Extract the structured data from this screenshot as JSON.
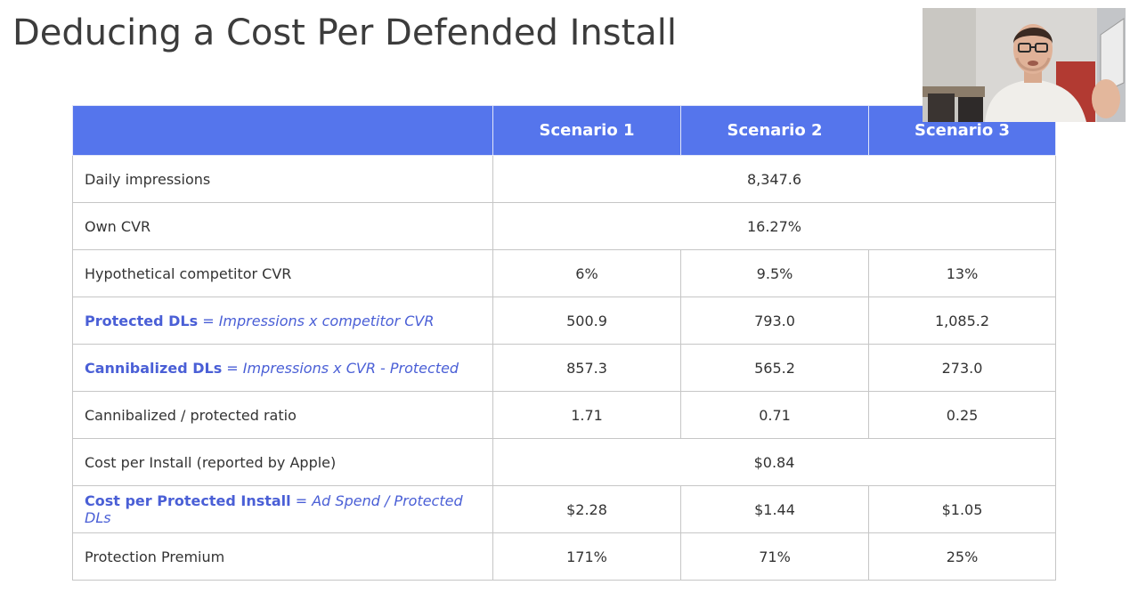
{
  "slide": {
    "title": "Deducing a Cost Per Defended Install"
  },
  "table": {
    "header": {
      "row_label": "",
      "scenarios": [
        "Scenario 1",
        "Scenario 2",
        "Scenario 3"
      ]
    },
    "rows": [
      {
        "label": "Daily impressions",
        "merged": true,
        "value": "8,347.6"
      },
      {
        "label": "Own CVR",
        "merged": true,
        "value": "16.27%"
      },
      {
        "label": "Hypothetical competitor CVR",
        "merged": false,
        "values": [
          "6%",
          "9.5%",
          "13%"
        ]
      },
      {
        "label": "Protected DLs",
        "formula": " = Impressions x competitor CVR",
        "merged": false,
        "values": [
          "500.9",
          "793.0",
          "1,085.2"
        ]
      },
      {
        "label": "Cannibalized DLs",
        "formula": " = Impressions x CVR - Protected",
        "merged": false,
        "values": [
          "857.3",
          "565.2",
          "273.0"
        ]
      },
      {
        "label": "Cannibalized / protected ratio",
        "merged": false,
        "values": [
          "1.71",
          "0.71",
          "0.25"
        ]
      },
      {
        "label": "Cost per Install (reported by Apple)",
        "merged": true,
        "value": "$0.84"
      },
      {
        "label": "Cost per Protected Install",
        "formula": " = Ad Spend / Protected DLs",
        "merged": false,
        "values": [
          "$2.28",
          "$1.44",
          "$1.05"
        ]
      },
      {
        "label": "Protection Premium",
        "merged": false,
        "values": [
          "171%",
          "71%",
          "25%"
        ]
      }
    ]
  },
  "colors": {
    "header_bg": "#5575ec",
    "accent_text": "#4a5fd6",
    "title_text": "#3c3c3c",
    "border": "#c6c6c6"
  },
  "webcam": {
    "icon": "presenter-video-icon"
  }
}
